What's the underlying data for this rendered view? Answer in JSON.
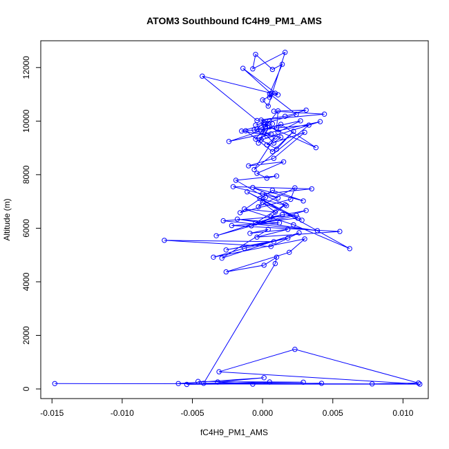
{
  "chart_data": {
    "type": "scatter",
    "title": "ATOM3 Southbound fC4H9_PM1_AMS",
    "xlabel": "fC4H9_PM1_AMS",
    "ylabel": "Altitude (m)",
    "xlim": [
      -0.0158,
      0.0118
    ],
    "ylim": [
      -360,
      13000
    ],
    "xticks": [
      -0.015,
      -0.01,
      -0.005,
      0.0,
      0.005,
      0.01
    ],
    "xtick_labels": [
      "-0.015",
      "-0.010",
      "-0.005",
      "0.000",
      "0.005",
      "0.010"
    ],
    "yticks": [
      0,
      2000,
      4000,
      6000,
      8000,
      10000,
      12000
    ],
    "ytick_labels": [
      "0",
      "2000",
      "4000",
      "6000",
      "8000",
      "10000",
      "12000"
    ],
    "grid": false,
    "color": "#0000ff",
    "marker": "open-circle",
    "connect_points": true,
    "series": [
      {
        "x": [
          -0.0148,
          0.0078,
          0.0111,
          0.0023,
          -0.0031,
          0.0112,
          -0.0007,
          -0.0032,
          0.0001,
          -0.006,
          0.0042,
          -0.0054,
          0.0005,
          -0.0046,
          0.0029,
          -0.0042,
          0.0009,
          0.001,
          0.0001,
          -0.0026,
          0.0019,
          0.003,
          -0.0035,
          -0.0013,
          0.0018,
          -0.0026,
          0.0008,
          -0.007,
          0.0006,
          0.0026,
          -0.0029,
          0.0004,
          -0.0009,
          0.0018,
          -0.0004,
          0.0055,
          -0.0022,
          0.0012,
          -0.0018,
          0.0039,
          -0.0028,
          0.0024,
          -0.0008,
          0.0014,
          -0.0033,
          0.0031,
          0.0006,
          0.0016,
          -0.0005,
          0.0025,
          0.0,
          0.0009,
          -0.0013,
          0.0022,
          0.0062,
          -0.0011,
          0.0028,
          -0.0002,
          0.0017,
          0.0,
          0.0035,
          -0.0021,
          0.0011,
          -0.0007,
          0.0029,
          0.0007,
          -0.0016,
          0.002,
          0.0023,
          -0.0003,
          0.0002,
          -0.0019,
          0.001,
          0.0003,
          -0.0004,
          0.0015,
          -0.001,
          0.0008,
          0.003,
          0.0003,
          0.0009,
          -0.0006,
          0.0033,
          -0.0012,
          0.0007,
          0.0022,
          0.001,
          -0.0001,
          0.0041,
          -0.0024,
          0.0013,
          0.0038,
          0.0005,
          -0.0003,
          0.0002,
          0.0027,
          0.0011,
          -0.0001,
          0.0044,
          0.0008,
          0.0031,
          0.0016,
          -0.0004,
          -0.0043,
          0.0011,
          -0.0014,
          0.0006,
          0.0005,
          0.0009,
          0.0,
          0.0004,
          0.0016,
          -0.0007,
          -0.0005,
          0.0007,
          0.0014,
          0.0005,
          0.0024,
          0.0002,
          0.0002,
          -0.0001,
          0.0006,
          -0.0005,
          0.0011,
          0.001,
          -0.0006,
          0.0003,
          0.0008,
          0.0013,
          -0.0015,
          0.0001,
          0.0005,
          -0.0005,
          0.0001,
          -0.0004,
          0.0007,
          0.0002
        ],
        "y": [
          200,
          190,
          220,
          1480,
          640,
          180,
          180,
          260,
          420,
          200,
          210,
          170,
          260,
          280,
          250,
          210,
          4680,
          4920,
          4620,
          4370,
          5100,
          5600,
          4920,
          5250,
          5630,
          5190,
          5500,
          5550,
          5320,
          5830,
          4880,
          5960,
          5810,
          5960,
          5670,
          5880,
          6100,
          6200,
          6340,
          5910,
          6280,
          6480,
          6090,
          6510,
          5720,
          6660,
          6420,
          6880,
          6200,
          6380,
          6960,
          6600,
          6720,
          6130,
          5240,
          7360,
          6300,
          7110,
          6840,
          7280,
          7470,
          7550,
          7130,
          7520,
          7020,
          7420,
          6580,
          7080,
          7510,
          6800,
          7150,
          7790,
          7950,
          7870,
          8050,
          8480,
          8330,
          8610,
          9580,
          9110,
          9410,
          8190,
          9850,
          9640,
          8860,
          9620,
          8950,
          9300,
          9980,
          9240,
          9880,
          9010,
          9780,
          9180,
          9720,
          10010,
          9590,
          10040,
          10260,
          10370,
          10410,
          10180,
          10020,
          11680,
          10980,
          11970,
          11030,
          10890,
          11040,
          10790,
          10560,
          12570,
          11950,
          12490,
          11930,
          12120,
          11020,
          10250,
          9920,
          9780,
          9630,
          9520,
          9330,
          10380,
          9750,
          9670,
          9450,
          9180,
          9400,
          9630,
          9870,
          10000,
          9850,
          9950,
          9700,
          9900,
          9800
        ]
      }
    ]
  }
}
